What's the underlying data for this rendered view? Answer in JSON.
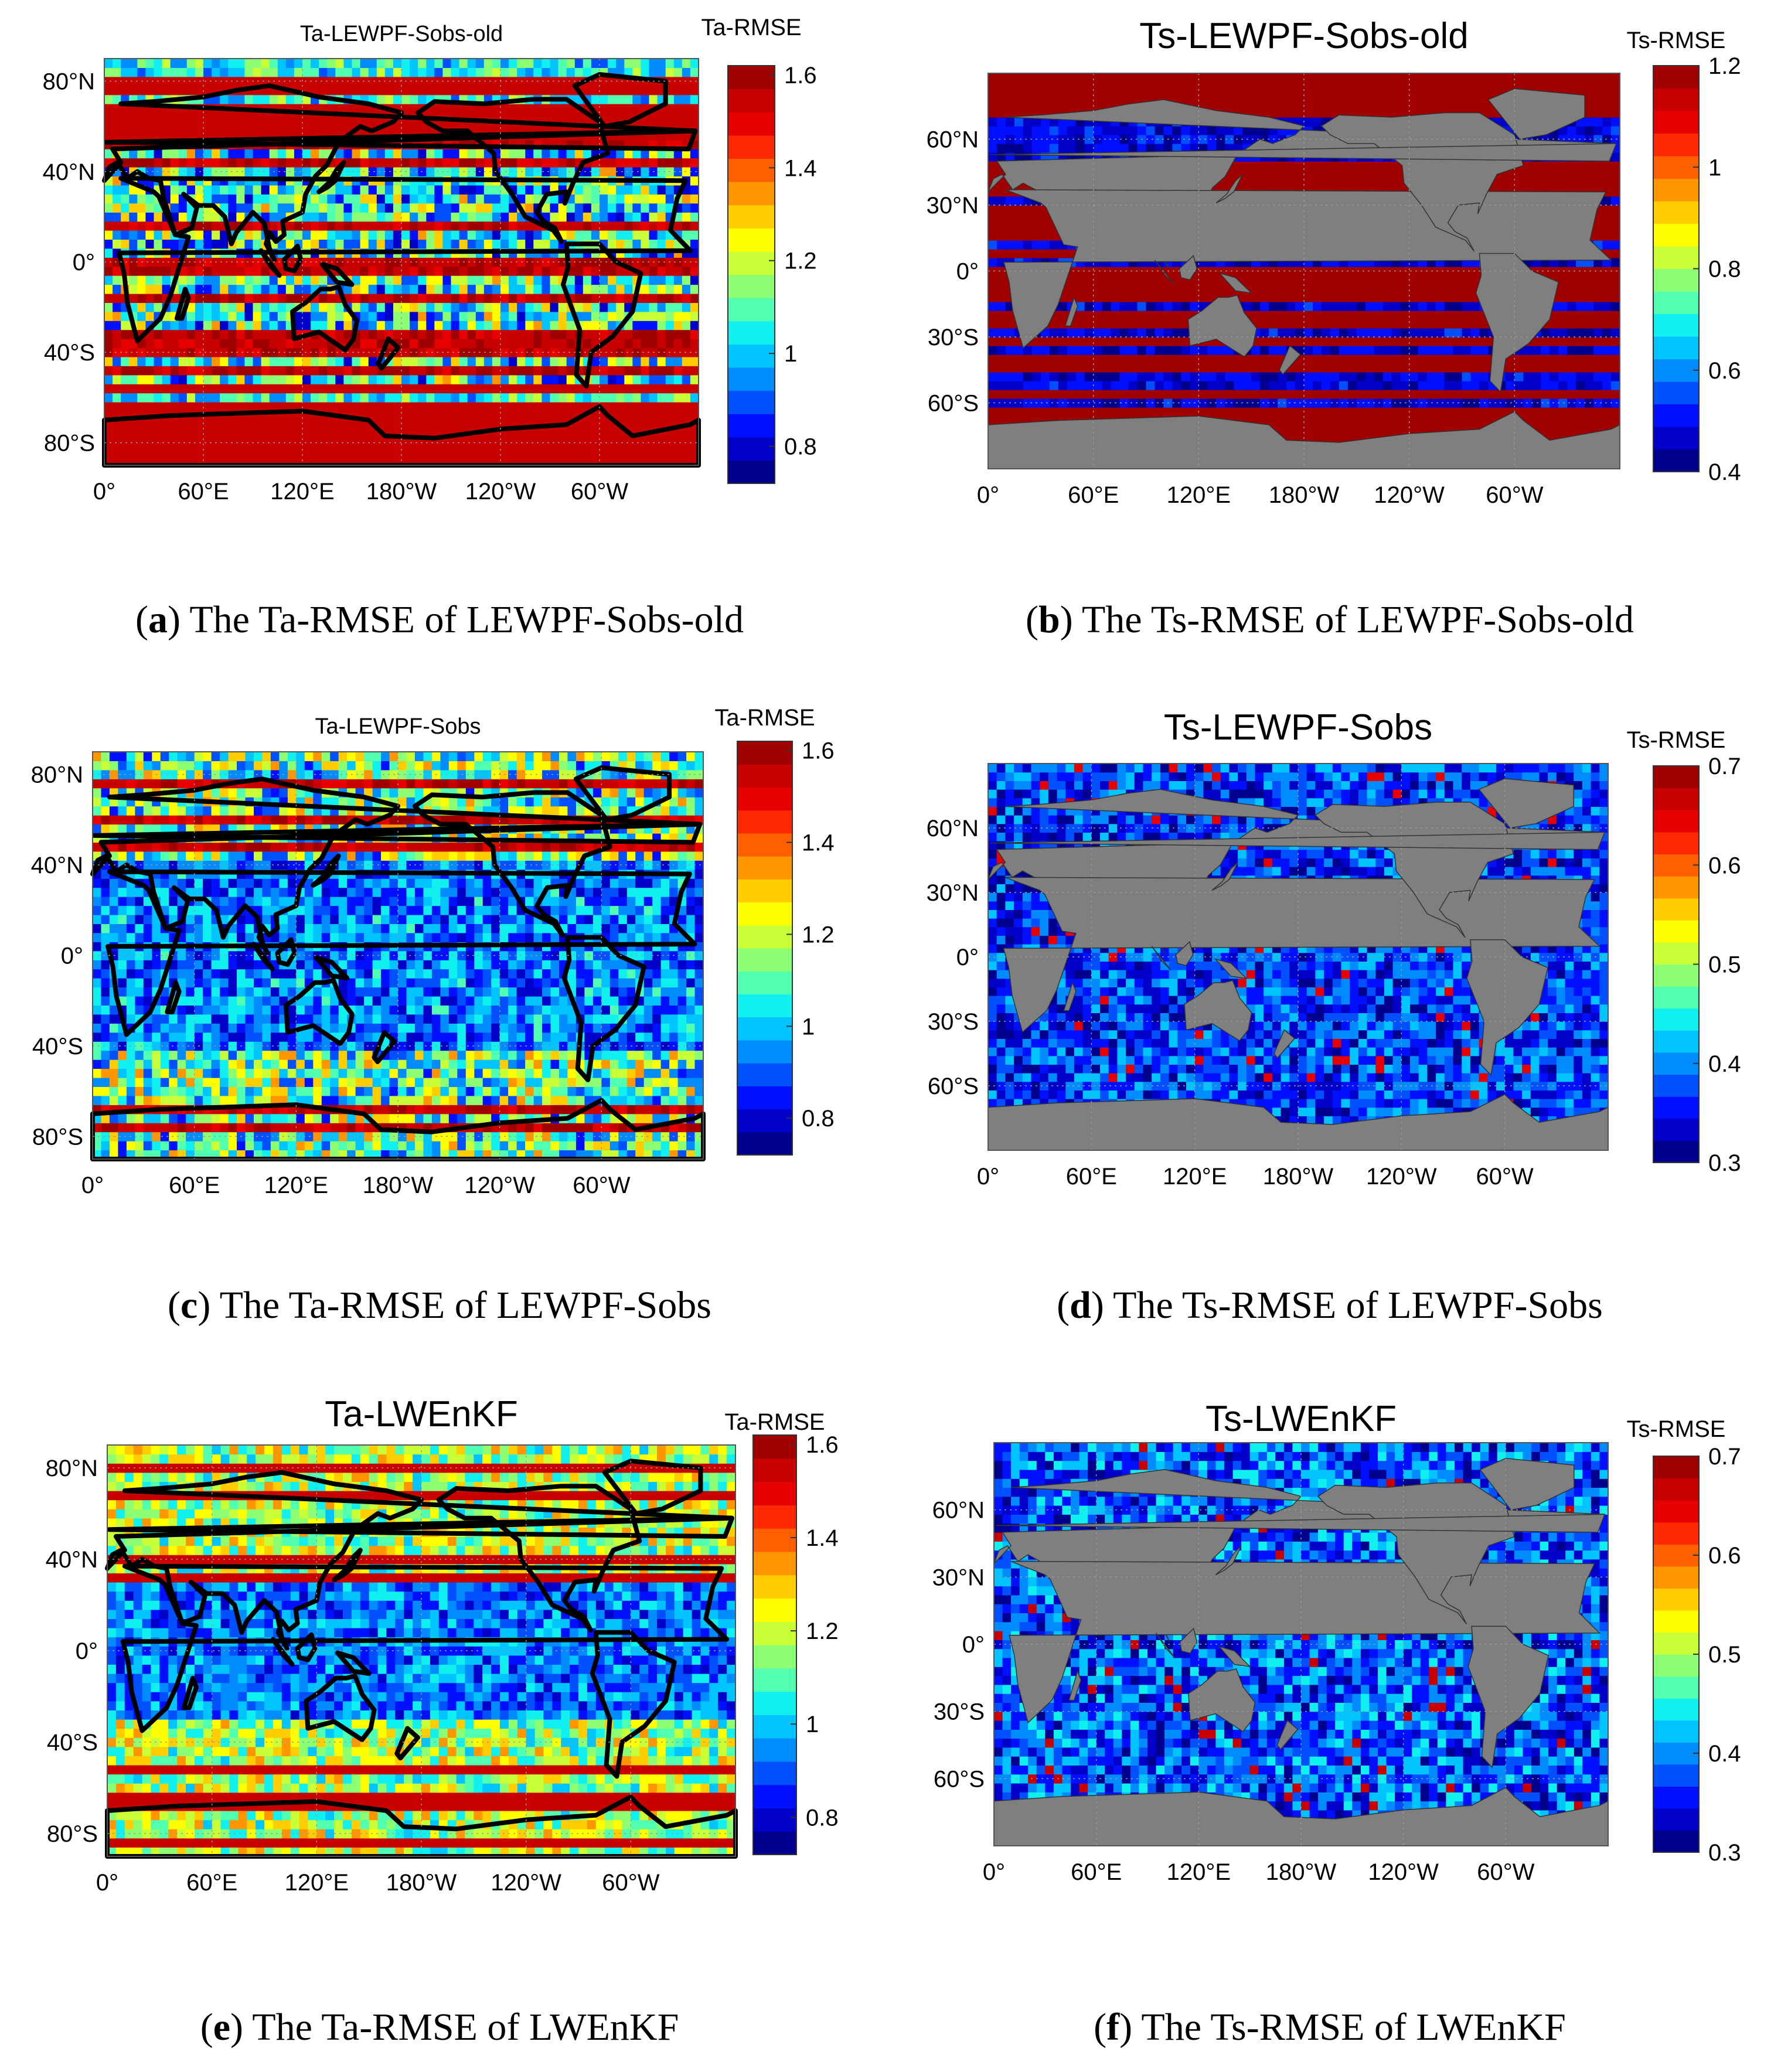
{
  "figure": {
    "panels": [
      {
        "id": "a",
        "caption_label": "a",
        "caption_text": ") The Ta-RMSE of LEWPF-Sobs-old"
      },
      {
        "id": "b",
        "caption_label": "b",
        "caption_text": ") The Ts-RMSE of LEWPF-Sobs-old"
      },
      {
        "id": "c",
        "caption_label": "c",
        "caption_text": ") The Ta-RMSE of LEWPF-Sobs"
      },
      {
        "id": "d",
        "caption_label": "d",
        "caption_text": ") The Ts-RMSE of LEWPF-Sobs"
      },
      {
        "id": "e",
        "caption_label": "e",
        "caption_text": ") The Ta-RMSE of LWEnKF"
      },
      {
        "id": "f",
        "caption_label": "f",
        "caption_text": ") The Ts-RMSE of LWEnKF"
      }
    ]
  },
  "chart_data": [
    {
      "id": "a",
      "type": "heatmap",
      "title": "Ta-LEWPF-Sobs-old",
      "colorbar_label": "Ta-RMSE",
      "variable": "Ta",
      "clim": [
        0.72,
        1.62
      ],
      "colorbar_ticks": [
        "0.8",
        "1",
        "1.2",
        "1.4",
        "1.6"
      ],
      "colorbar_tick_values": [
        0.8,
        1.0,
        1.2,
        1.4,
        1.6
      ],
      "x_ticks": [
        "0°",
        "60°E",
        "120°E",
        "180°W",
        "120°W",
        "60°W"
      ],
      "x_tick_values": [
        0,
        60,
        120,
        180,
        240,
        300
      ],
      "xlim": [
        0,
        360
      ],
      "y_ticks": [
        "80°N",
        "40°N",
        "0°",
        "40°S",
        "80°S"
      ],
      "y_tick_values": [
        80,
        40,
        0,
        -40,
        -80
      ],
      "ylim": [
        -90,
        90
      ],
      "grid": true,
      "land_style": "coastline-outline"
    },
    {
      "id": "b",
      "type": "heatmap",
      "title": "Ts-LEWPF-Sobs-old",
      "colorbar_label": "Ts-RMSE",
      "variable": "Ts",
      "clim": [
        0.4,
        1.2
      ],
      "colorbar_ticks": [
        "0.4",
        "0.6",
        "0.8",
        "1",
        "1.2"
      ],
      "colorbar_tick_values": [
        0.4,
        0.6,
        0.8,
        1.0,
        1.2
      ],
      "x_ticks": [
        "0°",
        "60°E",
        "120°E",
        "180°W",
        "120°W",
        "60°W"
      ],
      "x_tick_values": [
        0,
        60,
        120,
        180,
        240,
        300
      ],
      "xlim": [
        0,
        360
      ],
      "y_ticks": [
        "60°N",
        "30°N",
        "0°",
        "30°S",
        "60°S"
      ],
      "y_tick_values": [
        60,
        30,
        0,
        -30,
        -60
      ],
      "ylim": [
        -90,
        90
      ],
      "grid": true,
      "land_style": "gray-fill"
    },
    {
      "id": "c",
      "type": "heatmap",
      "title": "Ta-LEWPF-Sobs",
      "colorbar_label": "Ta-RMSE",
      "variable": "Ta",
      "clim": [
        0.72,
        1.62
      ],
      "colorbar_ticks": [
        "0.8",
        "1",
        "1.2",
        "1.4",
        "1.6"
      ],
      "colorbar_tick_values": [
        0.8,
        1.0,
        1.2,
        1.4,
        1.6
      ],
      "x_ticks": [
        "0°",
        "60°E",
        "120°E",
        "180°W",
        "120°W",
        "60°W"
      ],
      "x_tick_values": [
        0,
        60,
        120,
        180,
        240,
        300
      ],
      "xlim": [
        0,
        360
      ],
      "y_ticks": [
        "80°N",
        "40°N",
        "0°",
        "40°S",
        "80°S"
      ],
      "y_tick_values": [
        80,
        40,
        0,
        -40,
        -80
      ],
      "ylim": [
        -90,
        90
      ],
      "grid": true,
      "land_style": "coastline-outline"
    },
    {
      "id": "d",
      "type": "heatmap",
      "title": "Ts-LEWPF-Sobs",
      "colorbar_label": "Ts-RMSE",
      "variable": "Ts",
      "clim": [
        0.3,
        0.7
      ],
      "colorbar_ticks": [
        "0.3",
        "0.4",
        "0.5",
        "0.6",
        "0.7"
      ],
      "colorbar_tick_values": [
        0.3,
        0.4,
        0.5,
        0.6,
        0.7
      ],
      "x_ticks": [
        "0°",
        "60°E",
        "120°E",
        "180°W",
        "120°W",
        "60°W"
      ],
      "x_tick_values": [
        0,
        60,
        120,
        180,
        240,
        300
      ],
      "xlim": [
        0,
        360
      ],
      "y_ticks": [
        "60°N",
        "30°N",
        "0°",
        "30°S",
        "60°S"
      ],
      "y_tick_values": [
        60,
        30,
        0,
        -30,
        -60
      ],
      "ylim": [
        -90,
        90
      ],
      "grid": true,
      "land_style": "gray-fill"
    },
    {
      "id": "e",
      "type": "heatmap",
      "title": "Ta-LWEnKF",
      "colorbar_label": "Ta-RMSE",
      "variable": "Ta",
      "clim": [
        0.72,
        1.62
      ],
      "colorbar_ticks": [
        "0.8",
        "1",
        "1.2",
        "1.4",
        "1.6"
      ],
      "colorbar_tick_values": [
        0.8,
        1.0,
        1.2,
        1.4,
        1.6
      ],
      "x_ticks": [
        "0°",
        "60°E",
        "120°E",
        "180°W",
        "120°W",
        "60°W"
      ],
      "x_tick_values": [
        0,
        60,
        120,
        180,
        240,
        300
      ],
      "xlim": [
        0,
        360
      ],
      "y_ticks": [
        "80°N",
        "40°N",
        "0°",
        "40°S",
        "80°S"
      ],
      "y_tick_values": [
        80,
        40,
        0,
        -40,
        -80
      ],
      "ylim": [
        -90,
        90
      ],
      "grid": true,
      "land_style": "coastline-outline"
    },
    {
      "id": "f",
      "type": "heatmap",
      "title": "Ts-LWEnKF",
      "colorbar_label": "Ts-RMSE",
      "variable": "Ts",
      "clim": [
        0.3,
        0.7
      ],
      "colorbar_ticks": [
        "0.3",
        "0.4",
        "0.5",
        "0.6",
        "0.7"
      ],
      "colorbar_tick_values": [
        0.3,
        0.4,
        0.5,
        0.6,
        0.7
      ],
      "x_ticks": [
        "0°",
        "60°E",
        "120°E",
        "180°W",
        "120°W",
        "60°W"
      ],
      "x_tick_values": [
        0,
        60,
        120,
        180,
        240,
        300
      ],
      "xlim": [
        0,
        360
      ],
      "y_ticks": [
        "60°N",
        "30°N",
        "0°",
        "30°S",
        "60°S"
      ],
      "y_tick_values": [
        60,
        30,
        0,
        -30,
        -60
      ],
      "ylim": [
        -90,
        90
      ],
      "grid": true,
      "land_style": "gray-fill"
    }
  ]
}
